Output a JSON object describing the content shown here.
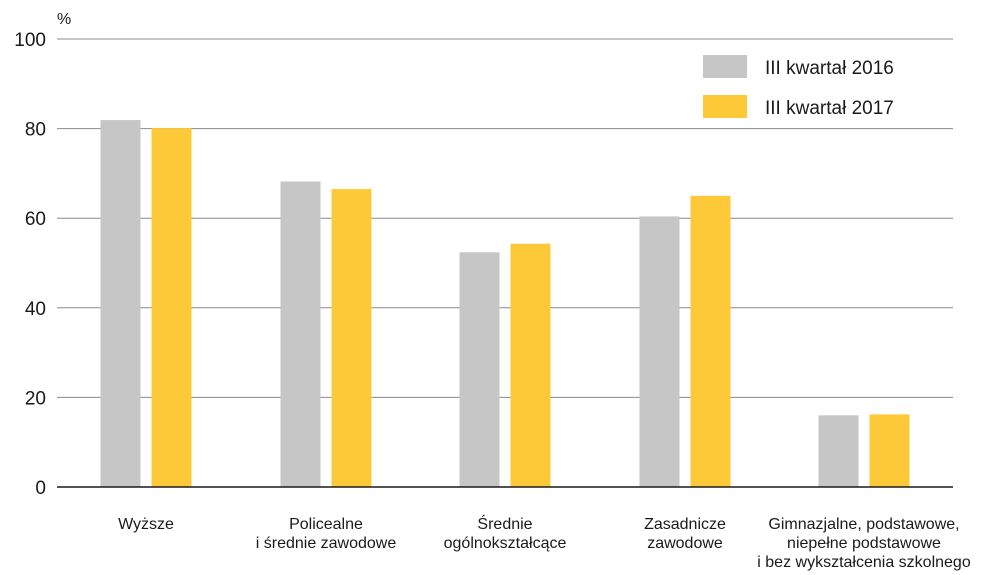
{
  "chart_data": {
    "type": "bar",
    "ylabel": "%",
    "ylim": [
      0,
      100
    ],
    "yticks": [
      0,
      20,
      40,
      60,
      80,
      100
    ],
    "grid": true,
    "legend_position": "top-right",
    "categories": [
      [
        "Wyższe"
      ],
      [
        "Policealne",
        "i średnie zawodowe"
      ],
      [
        "Średnie",
        "ogólnokształcące"
      ],
      [
        "Zasadnicze",
        "zawodowe"
      ],
      [
        "Gimnazjalne, podstawowe,",
        "niepełne podstawowe",
        "i bez wykształcenia szkolnego"
      ]
    ],
    "series": [
      {
        "name": "III kwartał 2016",
        "color": "#c6c6c6",
        "values": [
          81.9,
          68.2,
          52.4,
          60.4,
          16.0
        ]
      },
      {
        "name": "III kwartał 2017",
        "color": "#fec938",
        "values": [
          80.1,
          66.5,
          54.3,
          65.0,
          16.2
        ]
      }
    ],
    "gridline_color": "#8a8a8a",
    "axis_color": "#1a1a1a"
  }
}
